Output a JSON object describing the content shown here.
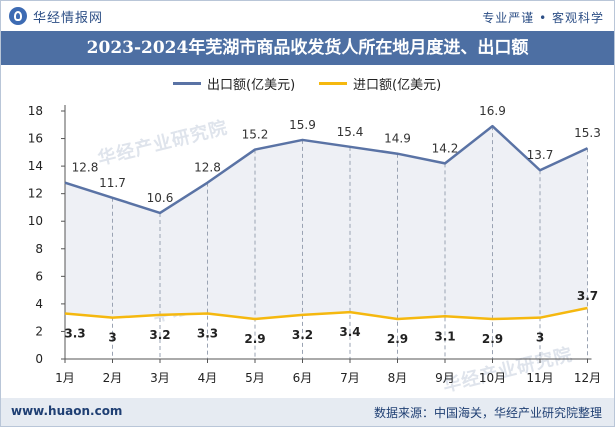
{
  "header": {
    "brand": "华经情报网",
    "slogan": "专业严谨 • 客观科学"
  },
  "watermark": "华经产业研究院",
  "chart_data": {
    "type": "line",
    "title": "2023-2024年芜湖市商品收发货人所在地月度进、出口额",
    "categories": [
      "1月",
      "2月",
      "3月",
      "4月",
      "5月",
      "6月",
      "7月",
      "8月",
      "9月",
      "10月",
      "11月",
      "12月"
    ],
    "ylim": [
      0,
      18
    ],
    "yticks": [
      0,
      2,
      4,
      6,
      8,
      10,
      12,
      14,
      16,
      18
    ],
    "grid": false,
    "legend_position": "top",
    "series": [
      {
        "name": "出口额(亿美元)",
        "color": "#5a73a5",
        "values": [
          12.8,
          11.7,
          10.6,
          12.8,
          15.2,
          15.9,
          15.4,
          14.9,
          14.2,
          16.9,
          13.7,
          15.3
        ]
      },
      {
        "name": "进口额(亿美元)",
        "color": "#f5b80f",
        "values": [
          3.3,
          3,
          3.2,
          3.3,
          2.9,
          3.2,
          3.4,
          2.9,
          3.1,
          2.9,
          3,
          3.7
        ]
      }
    ]
  },
  "footer": {
    "url": "www.huaon.com",
    "source": "数据来源：中国海关，华经产业研究院整理"
  }
}
